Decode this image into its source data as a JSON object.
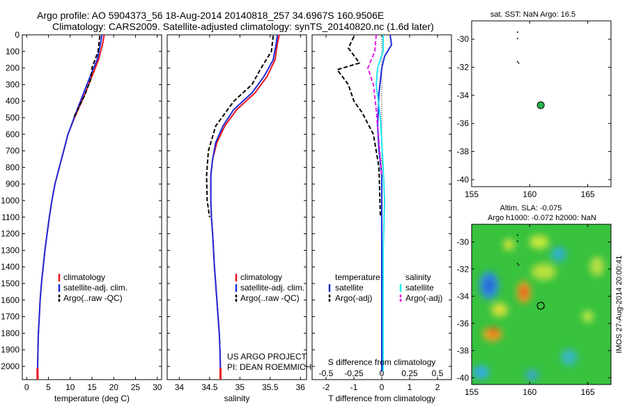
{
  "header": {
    "title_line1": "Argo profile: AO 5904373_56 18-Aug-2014 20140818_257 34.6967S 160.9506E",
    "title_line2": "Climatology: CARS2009. Satellite-adjusted climatology: synTS_20140820.nc (1.6d later)"
  },
  "colors": {
    "climatology": "#e8141e",
    "satellite": "#1f2bd9",
    "argo": "#000000",
    "sal_satellite": "#22e6f0",
    "sal_argo": "#e619e6",
    "marker": "#2bb34a"
  },
  "panels": {
    "temperature": {
      "xlabel": "temperature (deg C)",
      "legend": [
        "climatology",
        "satellite-adj. clim.",
        "Argo(..raw -QC)"
      ]
    },
    "salinity": {
      "xlabel": "salinity",
      "legend": [
        "climatology",
        "satellite-adj. clim.",
        "Argo(..raw -QC)"
      ],
      "credit_line1": "US ARGO PROJECT",
      "credit_line2": "PI: DEAN ROEMMICH"
    },
    "difference": {
      "xlabel_bottom": "T difference from climatology",
      "xlabel_top": "S difference from climatology",
      "legend_head_t": "temperature",
      "legend_head_s": "salinity",
      "legend": [
        "satellite",
        "Argo(-adj)",
        "satellite",
        "Argo(-adj)"
      ]
    },
    "sst_map": {
      "title": "sat. SST: NaN Argo: 16.5"
    },
    "sla_map": {
      "title_line1": "Altim. SLA: -0.075",
      "title_line2": "Argo h1000: -0.072 h2000: NaN",
      "side_label": "IMOS 27-Aug-2014 20:00:41"
    }
  },
  "chart_data": [
    {
      "type": "line",
      "name": "temperature profile",
      "xlim": [
        -1,
        31
      ],
      "ylim": [
        2080,
        0
      ],
      "xticks": [
        0,
        5,
        10,
        15,
        20,
        25,
        30
      ],
      "yticks": [
        0,
        100,
        200,
        300,
        400,
        500,
        600,
        700,
        800,
        900,
        1000,
        1100,
        1200,
        1300,
        1400,
        1500,
        1600,
        1700,
        1800,
        1900,
        2000
      ],
      "series": [
        {
          "name": "climatology",
          "style": "solid",
          "color": "#e8141e",
          "x": [
            17.8,
            17.5,
            16.5,
            15.0,
            13.5,
            11.0,
            9.5,
            8.5,
            7.5,
            6.5,
            5.8,
            5.2,
            4.7,
            4.2,
            3.8,
            3.4,
            3.1,
            2.9,
            2.7,
            2.6,
            2.5
          ],
          "y": [
            0,
            50,
            150,
            250,
            350,
            500,
            600,
            700,
            800,
            900,
            1000,
            1100,
            1200,
            1300,
            1400,
            1500,
            1600,
            1700,
            1800,
            1900,
            2030
          ]
        },
        {
          "name": "satellite-adj. clim.",
          "style": "solid",
          "color": "#1f2bd9",
          "x": [
            17.3,
            17.0,
            16.2,
            14.6,
            13.1,
            10.9,
            9.5,
            8.5,
            7.5,
            6.5,
            5.8,
            5.2,
            4.7,
            4.2,
            3.8,
            3.4,
            3.1,
            2.9,
            2.7,
            2.6,
            2.5
          ],
          "y": [
            0,
            50,
            150,
            250,
            350,
            500,
            600,
            700,
            800,
            900,
            1000,
            1100,
            1200,
            1300,
            1400,
            1500,
            1600,
            1700,
            1800,
            1900,
            2030
          ]
        },
        {
          "name": "Argo(..raw -QC)",
          "style": "dashed",
          "color": "#000000",
          "x": [
            16.8,
            16.4,
            15.0,
            14.8,
            13.4,
            10.8
          ],
          "y": [
            5,
            100,
            200,
            260,
            360,
            500
          ]
        }
      ]
    },
    {
      "type": "line",
      "name": "salinity profile",
      "xlim": [
        33.8,
        36.1
      ],
      "ylim": [
        2080,
        0
      ],
      "xticks": [
        34,
        34.5,
        35,
        35.5,
        36
      ],
      "series": [
        {
          "name": "climatology",
          "style": "solid",
          "color": "#e8141e",
          "x": [
            35.65,
            35.62,
            35.58,
            35.45,
            35.25,
            34.95,
            34.75,
            34.62,
            34.55,
            34.52,
            34.52,
            34.53,
            34.55,
            34.58,
            34.6,
            34.62,
            34.64,
            34.66,
            34.67,
            34.68
          ],
          "y": [
            0,
            50,
            150,
            250,
            350,
            450,
            550,
            650,
            750,
            850,
            1000,
            1100,
            1200,
            1400,
            1500,
            1600,
            1700,
            1800,
            1900,
            2030
          ]
        },
        {
          "name": "satellite-adj. clim.",
          "style": "solid",
          "color": "#1f2bd9",
          "x": [
            35.62,
            35.6,
            35.55,
            35.4,
            35.2,
            34.9,
            34.72,
            34.6,
            34.55,
            34.52,
            34.52,
            34.53,
            34.55,
            34.58,
            34.6,
            34.62,
            34.64,
            34.66,
            34.67,
            34.68
          ],
          "y": [
            0,
            50,
            150,
            250,
            350,
            450,
            550,
            650,
            750,
            850,
            1000,
            1100,
            1200,
            1400,
            1500,
            1600,
            1700,
            1800,
            1900,
            2030
          ]
        },
        {
          "name": "Argo(..raw -QC)",
          "style": "dashed",
          "color": "#000000",
          "x": [
            35.55,
            35.52,
            35.35,
            35.2,
            34.9,
            34.6,
            34.48,
            34.45,
            34.46,
            34.5
          ],
          "y": [
            5,
            100,
            200,
            300,
            400,
            550,
            700,
            850,
            1000,
            1100
          ]
        }
      ]
    },
    {
      "type": "line",
      "name": "difference from climatology",
      "xlim": [
        -2.5,
        2.5
      ],
      "ylim": [
        2080,
        0
      ],
      "xticks_bottom": [
        -2,
        -1,
        0,
        1,
        2
      ],
      "xticks_top": [
        -0.5,
        -0.25,
        0,
        0.25,
        0.5
      ],
      "series": [
        {
          "name": "temperature satellite",
          "style": "solid",
          "color": "#1f2bd9",
          "x": [
            0.3,
            0.35,
            0.1,
            0.0,
            -0.1,
            -0.15,
            -0.1,
            0.0,
            0.0,
            0.0
          ],
          "y": [
            0,
            60,
            130,
            200,
            350,
            550,
            700,
            850,
            1000,
            2030
          ]
        },
        {
          "name": "temperature Argo(-adj)",
          "style": "dashed",
          "color": "#000000",
          "x": [
            -1.0,
            -1.2,
            -0.8,
            -1.6,
            -1.2,
            -1.0,
            -0.7,
            -0.3,
            -0.1,
            -0.05
          ],
          "y": [
            10,
            80,
            170,
            210,
            300,
            400,
            470,
            600,
            800,
            1100
          ]
        },
        {
          "name": "salinity satellite",
          "style": "solid",
          "color": "#22e6f0",
          "x": [
            0.05,
            0.05,
            -0.15,
            -0.2,
            -0.05,
            0.05,
            0.1,
            0.05,
            0.05
          ],
          "y": [
            0,
            100,
            200,
            300,
            500,
            800,
            1000,
            1300,
            2030
          ]
        },
        {
          "name": "salinity Argo(-adj)",
          "style": "dashed",
          "color": "#e619e6",
          "x": [
            -0.2,
            -0.25,
            -0.5,
            -0.3,
            -0.2,
            0.0
          ],
          "y": [
            0,
            100,
            200,
            300,
            450,
            850
          ]
        }
      ]
    },
    {
      "type": "scatter",
      "name": "SST map",
      "xlim": [
        155,
        167
      ],
      "ylim": [
        -40.5,
        -28.7
      ],
      "xticks": [
        155,
        160,
        165
      ],
      "yticks": [
        -30,
        -32,
        -34,
        -36,
        -38,
        -40
      ],
      "points": [
        {
          "x": 160.95,
          "y": -34.7,
          "role": "Argo position"
        },
        {
          "x": 158.95,
          "y": -29.5
        },
        {
          "x": 158.95,
          "y": -29.95
        },
        {
          "x": 158.95,
          "y": -31.6
        },
        {
          "x": 159.05,
          "y": -31.7
        }
      ]
    },
    {
      "type": "heatmap",
      "name": "SLA map",
      "xlim": [
        155,
        167
      ],
      "ylim": [
        -40.5,
        -28.7
      ],
      "xticks": [
        155,
        160,
        165
      ],
      "yticks": [
        -30,
        -32,
        -34,
        -36,
        -38,
        -40
      ],
      "argo_position": {
        "x": 160.95,
        "y": -34.7
      }
    }
  ]
}
